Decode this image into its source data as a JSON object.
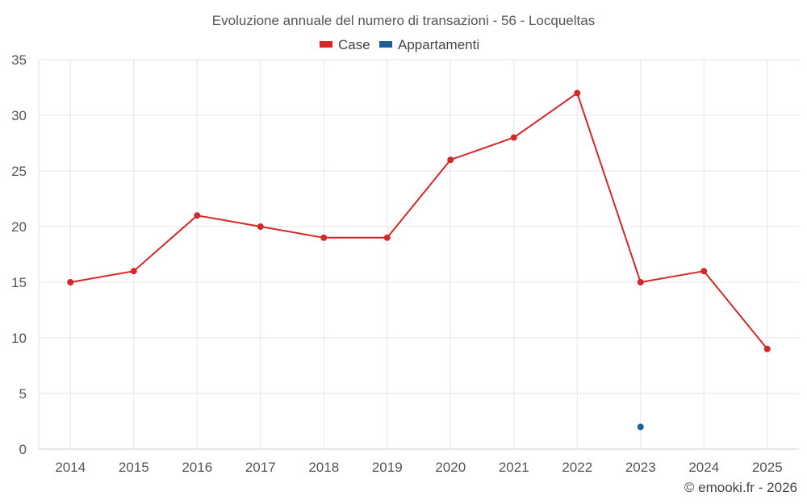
{
  "chart_data": {
    "type": "line",
    "title": "Evoluzione annuale del numero di transazioni - 56 - Locqueltas",
    "categories": [
      "2014",
      "2015",
      "2016",
      "2017",
      "2018",
      "2019",
      "2020",
      "2021",
      "2022",
      "2023",
      "2024",
      "2025"
    ],
    "series": [
      {
        "name": "Case",
        "color": "#d62728",
        "values": [
          15,
          16,
          21,
          20,
          19,
          19,
          26,
          28,
          32,
          15,
          16,
          9
        ]
      },
      {
        "name": "Appartamenti",
        "color": "#1f5f99",
        "values": [
          null,
          null,
          null,
          null,
          null,
          null,
          null,
          null,
          null,
          2,
          null,
          null
        ]
      }
    ],
    "ylim": [
      0,
      35
    ],
    "yticks": [
      0,
      5,
      10,
      15,
      20,
      25,
      30,
      35
    ],
    "xlabel": "",
    "ylabel": "",
    "grid": true,
    "legend_position": "top-center",
    "credit": "© emooki.fr - 2026"
  }
}
